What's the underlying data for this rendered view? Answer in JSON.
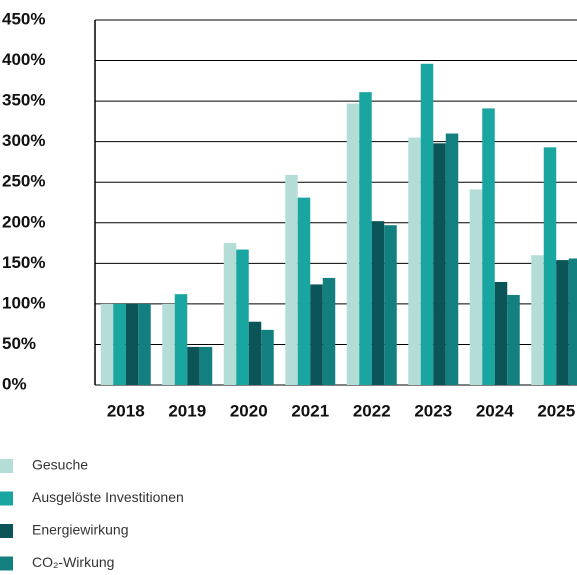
{
  "chart_data": {
    "type": "bar",
    "categories": [
      "2018",
      "2019",
      "2020",
      "2021",
      "2022",
      "2023",
      "2024",
      "2025"
    ],
    "series": [
      {
        "name": "Gesuche",
        "color": "#b5ddd8",
        "values": [
          100,
          100,
          175,
          259,
          347,
          305,
          241,
          160
        ]
      },
      {
        "name": "Ausgelöste Investitionen",
        "color": "#1aa6a0",
        "values": [
          100,
          112,
          167,
          231,
          361,
          396,
          341,
          293
        ]
      },
      {
        "name": "Energiewirkung",
        "color": "#0b5457",
        "values": [
          100,
          47,
          78,
          124,
          202,
          298,
          127,
          154
        ]
      },
      {
        "name": "CO₂-Wirkung",
        "color": "#13807f",
        "values": [
          100,
          47,
          68,
          132,
          197,
          310,
          111,
          156
        ]
      }
    ],
    "ylim": [
      0,
      450
    ],
    "yticks": [
      {
        "value": 0,
        "label": "0%"
      },
      {
        "value": 50,
        "label": "50%"
      },
      {
        "value": 100,
        "label": "100%"
      },
      {
        "value": 150,
        "label": "150%"
      },
      {
        "value": 200,
        "label": "200%"
      },
      {
        "value": 250,
        "label": "250%"
      },
      {
        "value": 300,
        "label": "300%"
      },
      {
        "value": 350,
        "label": "350%"
      },
      {
        "value": 400,
        "label": "400%"
      },
      {
        "value": 450,
        "label": "450%"
      }
    ],
    "grid": true
  }
}
